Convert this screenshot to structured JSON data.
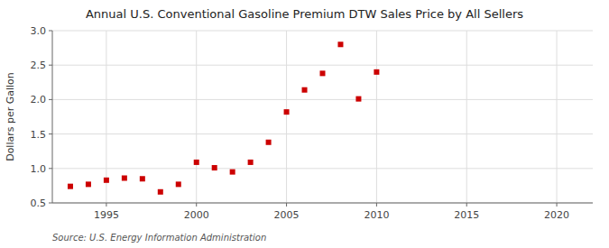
{
  "chart_data": {
    "type": "scatter",
    "title": "Annual U.S. Conventional Gasoline Premium DTW Sales Price by All Sellers",
    "ylabel": "Dollars per Gallon",
    "source": "Source: U.S. Energy Information Administration",
    "x": [
      1993,
      1994,
      1995,
      1996,
      1997,
      1998,
      1999,
      2000,
      2001,
      2002,
      2003,
      2004,
      2005,
      2006,
      2007,
      2008,
      2009,
      2010
    ],
    "values": [
      0.74,
      0.77,
      0.83,
      0.86,
      0.85,
      0.66,
      0.77,
      1.09,
      1.01,
      0.95,
      1.09,
      1.38,
      1.82,
      2.14,
      2.38,
      2.8,
      2.01,
      2.4
    ],
    "color": "#cc0000",
    "marker": "square",
    "xlim": [
      1992,
      2022
    ],
    "ylim": [
      0.5,
      3.0
    ],
    "xticks": [
      1995,
      2000,
      2005,
      2010,
      2015,
      2020
    ],
    "yticks": [
      0.5,
      {
        "value": 1.0,
        "label": "1.0"
      },
      1.5,
      {
        "value": 2.0,
        "label": "2.0"
      },
      2.5,
      {
        "value": 3.0,
        "label": "3.0"
      }
    ],
    "grid": true
  }
}
